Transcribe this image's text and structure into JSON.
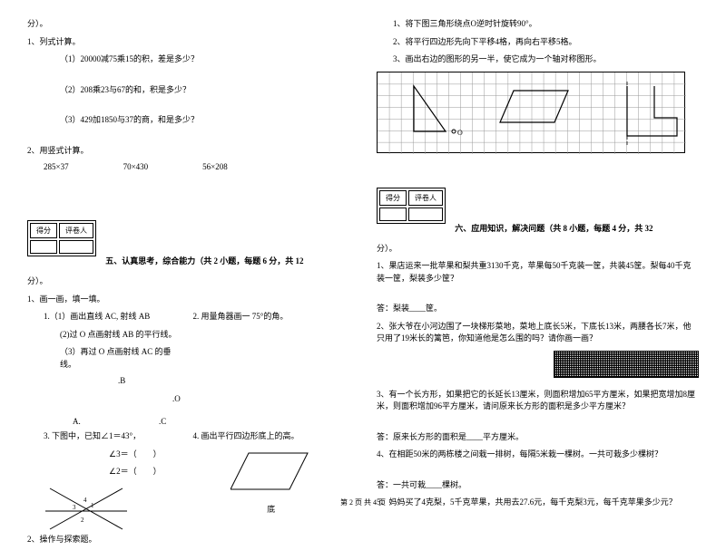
{
  "left": {
    "fen_suffix": "分）。",
    "q1": {
      "title": "1、列式计算。",
      "items": [
        "（1）20000减75乘15的积，差是多少？",
        "（2）208乘23与67的和，积是多少？",
        "（3）429加1850与37的商，和是多少？"
      ]
    },
    "q2": {
      "title": "2、用竖式计算。",
      "items": [
        "285×37",
        "70×430",
        "56×208"
      ]
    },
    "score": {
      "left": "得分",
      "right": "评卷人"
    },
    "section5": "五、认真思考，综合能力（共 2 小题，每题 6 分，共 12",
    "s5_suffix": "分）。",
    "s5_q1": "1、画一画，填一填。",
    "s5_1_1": "1.（1）画出直线 AC, 射线 AB",
    "s5_1_2": "(2)过 O 点画射线 AB 的平行线。",
    "s5_1_3": "（3）再过 O 点画射线 AC 的垂线。",
    "s5_1_right": "2. 用量角器画一 75°的角。",
    "pts": {
      "B": ".B",
      "O": ".O",
      "A": "A.",
      "C": ".C"
    },
    "s5_3": "3. 下图中，已知∠1＝43°，",
    "s5_3a": "∠3＝（　　）",
    "s5_3b": "∠2＝（　　）",
    "s5_4": "4. 画出平行四边形底上的高。",
    "s5_4_base": "底",
    "s5_q2": "2、操作与探索题。"
  },
  "right": {
    "t1": "1、将下图三角形绕点O逆时针旋转90°。",
    "t2": "2、将平行四边形先向下平移4格，再向右平移5格。",
    "t3": "3、画出右边的图形的另一半，使它成为一个轴对称图形。",
    "score": {
      "left": "得分",
      "right": "评卷人"
    },
    "section6": "六、应用知识，解决问题（共 8 小题，每题 4 分，共 32",
    "s6_suffix": "分）。",
    "q1": "1、果店运来一批苹果和梨共重3130千克，苹果每50千克装一筐，共装45筐。梨每40千克装一筐，梨装多少筐？",
    "q1a": "答：梨装____筐。",
    "q2": "2、张大爷在小河边围了一块梯形菜地，菜地上底长5米，下底长13米，两腰各长7米，他只用了19米长的篱笆，你知道他是怎么围的吗？请你画一画？",
    "q3": "3、有一个长方形，如果把它的长延长13厘米，则面积增加65平方厘米，如果把宽增加8厘米，则面积增加96平方厘米，请问原来长方形的面积是多少平方厘米？",
    "q3a": "答：原来长方形的面积是____平方厘米。",
    "q4": "4、在相距50米的两栋楼之间栽一排树，每隔5米栽一棵树。一共可栽多少棵树？",
    "q4a": "答：一共可栽____棵树。",
    "q5": "5、妈妈买了4克梨，5千克苹果，共用去27.6元，每千克梨3元，每千克苹果多少元？"
  },
  "footer": "第 2 页 共 4 页",
  "grid": {
    "rows": 7,
    "cols": 26
  }
}
